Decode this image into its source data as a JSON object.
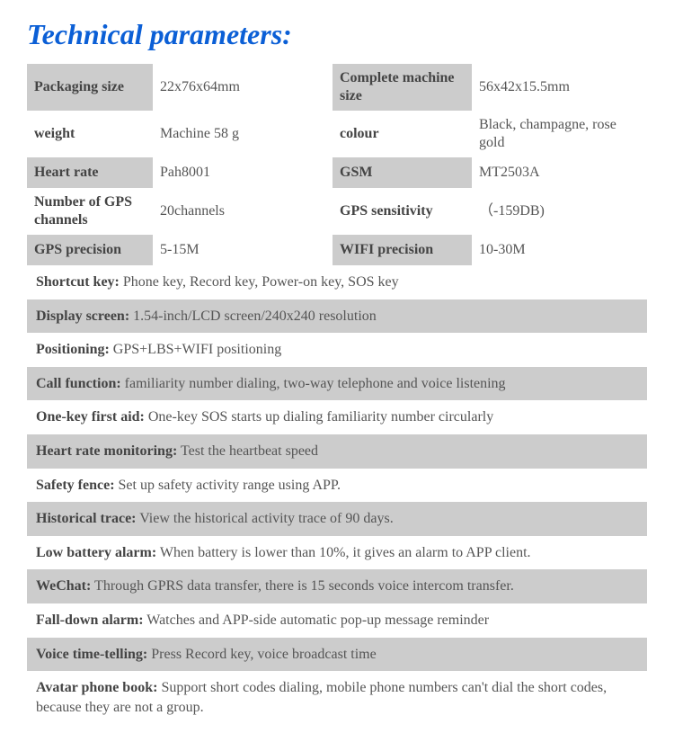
{
  "title": "Technical parameters:",
  "title_color": "#0b5fd6",
  "colors": {
    "grey": "#cccccc",
    "white": "#ffffff",
    "label_text": "#444444",
    "value_text": "#555555"
  },
  "gridRows": [
    {
      "l1": "Packaging size",
      "v1": "22x76x64mm",
      "l2": "Complete machine size",
      "v2": "56x42x15.5mm",
      "bg": "grey"
    },
    {
      "l1": "weight",
      "v1": "Machine 58 g",
      "l2": "colour",
      "v2": "Black, champagne, rose gold",
      "bg": "white"
    },
    {
      "l1": "Heart rate",
      "v1": "Pah8001",
      "l2": "GSM",
      "v2": "MT2503A",
      "bg": "grey"
    },
    {
      "l1": "Number of GPS channels",
      "v1": "20channels",
      "l2": "GPS sensitivity",
      "v2": "（-159DB)",
      "bg": "white"
    },
    {
      "l1": "GPS precision",
      "v1": "5-15M",
      "l2": "WIFI precision",
      "v2": "10-30M",
      "bg": "grey"
    }
  ],
  "fullRows": [
    {
      "label": "Shortcut key:",
      "value": " Phone key, Record key, Power-on key, SOS key",
      "bg": "white"
    },
    {
      "label": "Display screen:",
      "value": "  1.54-inch/LCD screen/240x240 resolution",
      "bg": "grey"
    },
    {
      "label": "Positioning:",
      "value": " GPS+LBS+WIFI positioning",
      "bg": "white"
    },
    {
      "label": "Call function:",
      "value": " familiarity number dialing, two-way telephone and voice listening",
      "bg": "grey"
    },
    {
      "label": "One-key first aid:",
      "value": " One-key SOS starts up dialing familiarity number circularly",
      "bg": "white"
    },
    {
      "label": "Heart rate monitoring:",
      "value": " Test the heartbeat speed",
      "bg": "grey"
    },
    {
      "label": "Safety fence:",
      "value": " Set up safety activity range using APP.",
      "bg": "white"
    },
    {
      "label": "Historical trace:",
      "value": " View the historical activity trace of 90 days.",
      "bg": "grey"
    },
    {
      "label": "Low battery alarm:",
      "value": " When battery is lower than 10%, it gives an alarm to APP client.",
      "bg": "white"
    },
    {
      "label": "WeChat:",
      "value": " Through GPRS data transfer, there is 15 seconds voice intercom transfer.",
      "bg": "grey"
    },
    {
      "label": "Fall-down alarm:",
      "value": " Watches and APP-side automatic pop-up message reminder",
      "bg": "white"
    },
    {
      "label": "Voice time-telling:",
      "value": " Press Record key, voice broadcast time",
      "bg": "grey"
    },
    {
      "label": "Avatar phone book:",
      "value": " Support short codes dialing, mobile phone numbers can't dial the short codes, because they are not a group.",
      "bg": "white"
    }
  ]
}
